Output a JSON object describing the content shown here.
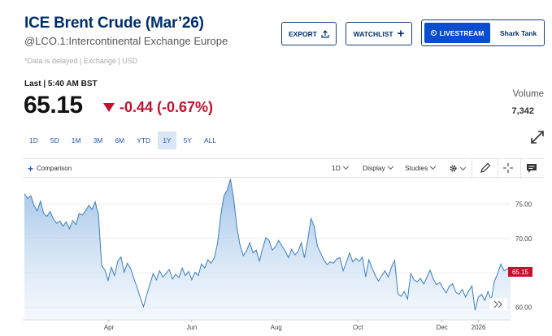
{
  "header": {
    "title": "ICE Brent Crude (Mar’26)",
    "subtitle": "@LCO.1:Intercontinental Exchange Europe",
    "note": "*Data is delayed | Exchange | USD"
  },
  "buttons": {
    "export": "EXPORT",
    "watchlist": "WATCHLIST",
    "livestream": "LIVESTREAM",
    "show": "Shark Tank"
  },
  "quote": {
    "last_label": "Last | 5:40 AM BST",
    "price": "65.15",
    "change": "-0.44 (-0.67%)",
    "volume_label": "Volume",
    "volume": "7,342"
  },
  "ranges": [
    "1D",
    "5D",
    "1M",
    "3M",
    "6M",
    "YTD",
    "1Y",
    "5Y",
    "ALL"
  ],
  "active_range": "1Y",
  "toolbar": {
    "comparison": "Comparison",
    "interval": "1D",
    "display": "Display",
    "studies": "Studies"
  },
  "colors": {
    "brand": "#002f6c",
    "accent": "#0a4ed0",
    "negative": "#c8102e",
    "line": "#3a7fc4"
  },
  "chart_data": {
    "type": "area",
    "y_ticks": [
      "75.00",
      "70.00",
      "65.00",
      "60.00"
    ],
    "ylim": [
      58.2,
      78.8
    ],
    "x_ticks": [
      {
        "label": "Apr",
        "pos": 0.174
      },
      {
        "label": "Jun",
        "pos": 0.344
      },
      {
        "label": "Aug",
        "pos": 0.518
      },
      {
        "label": "Oct",
        "pos": 0.686
      },
      {
        "label": "Dec",
        "pos": 0.859
      },
      {
        "label": "2026",
        "pos": 0.934
      }
    ],
    "last_label": "65.15",
    "last_value": 65.15,
    "values": [
      76.5,
      75.8,
      76.2,
      74.8,
      74.0,
      75.4,
      73.6,
      73.2,
      73.9,
      72.8,
      72.2,
      72.5,
      71.8,
      72.4,
      71.4,
      72.6,
      72.0,
      73.6,
      73.4,
      74.0,
      74.8,
      74.2,
      75.3,
      73.5,
      66.1,
      65.4,
      63.9,
      65.8,
      64.6,
      66.7,
      67.3,
      65.1,
      66.4,
      65.6,
      64.2,
      62.9,
      61.4,
      60.1,
      61.8,
      63.4,
      64.9,
      64.0,
      65.3,
      64.4,
      64.9,
      65.5,
      64.1,
      64.8,
      64.3,
      65.7,
      64.6,
      65.2,
      64.0,
      65.1,
      64.6,
      66.3,
      65.7,
      66.9,
      66.4,
      67.2,
      69.3,
      73.4,
      76.2,
      77.0,
      78.6,
      75.8,
      71.6,
      69.0,
      67.5,
      68.2,
      69.4,
      67.9,
      68.3,
      66.7,
      68.6,
      70.1,
      69.7,
      68.3,
      68.8,
      69.7,
      68.9,
      68.2,
      67.2,
      68.4,
      67.6,
      68.1,
      69.4,
      67.2,
      69.7,
      72.9,
      71.8,
      68.9,
      67.9,
      66.9,
      66.2,
      66.6,
      66.4,
      67.0,
      67.2,
      65.3,
      66.5,
      67.9,
      66.6,
      67.1,
      66.7,
      67.3,
      64.4,
      66.9,
      65.7,
      64.6,
      63.8,
      64.6,
      65.3,
      64.4,
      65.8,
      66.8,
      62.0,
      61.6,
      62.3,
      61.2,
      64.9,
      64.0,
      63.7,
      64.2,
      63.4,
      64.3,
      65.4,
      64.1,
      63.3,
      63.6,
      62.8,
      62.1,
      63.1,
      63.4,
      62.2,
      61.9,
      62.6,
      61.5,
      62.4,
      63.1,
      59.6,
      61.5,
      61.9,
      61.0,
      62.3,
      61.1,
      63.8,
      64.9,
      66.3,
      65.3,
      65.6,
      65.15
    ]
  }
}
